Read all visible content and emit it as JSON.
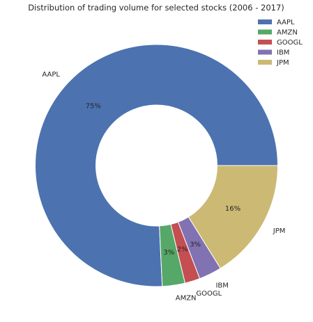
{
  "chart_data": {
    "type": "pie",
    "style": "donut",
    "title": "Distribution of trading volume for selected stocks (2006 - 2017)",
    "labels": [
      "AAPL",
      "AMZN",
      "GOOGL",
      "IBM",
      "JPM"
    ],
    "values": [
      75,
      3,
      2,
      3,
      16
    ],
    "percent_labels": [
      "75%",
      "3%",
      "2%",
      "3%",
      "16%"
    ],
    "colors": [
      "#4c72b0",
      "#55a868",
      "#c44e52",
      "#8172b2",
      "#ccb974"
    ],
    "legend": {
      "entries": [
        "AAPL",
        "AMZN",
        "GOOGL",
        "IBM",
        "JPM"
      ],
      "placement": "top-right"
    },
    "start_angle": "east",
    "direction": "counterclockwise"
  }
}
